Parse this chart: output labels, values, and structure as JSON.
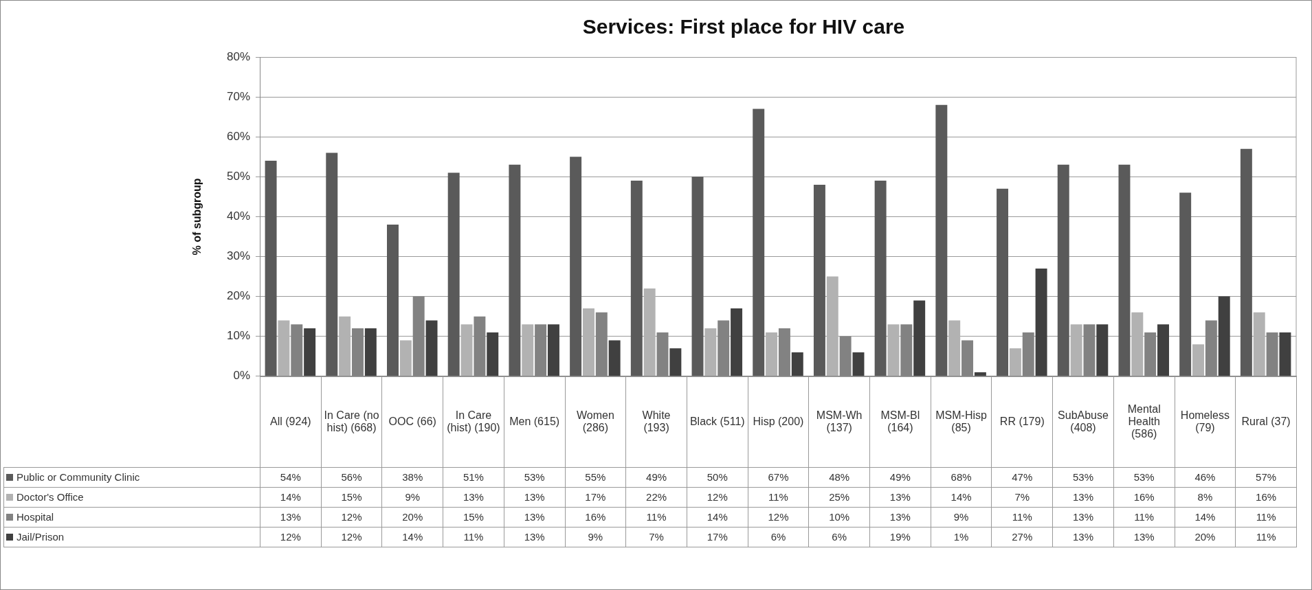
{
  "chart_data": {
    "type": "bar",
    "title": "Services: First place for HIV care",
    "ylabel": "% of subgroup",
    "categories": [
      "All (924)",
      "In Care (no hist) (668)",
      "OOC (66)",
      "In Care (hist) (190)",
      "Men (615)",
      "Women (286)",
      "White (193)",
      "Black (511)",
      "Hisp (200)",
      "MSM-Wh (137)",
      "MSM-Bl (164)",
      "MSM-Hisp (85)",
      "RR (179)",
      "SubAbuse (408)",
      "Mental Health (586)",
      "Homeless (79)",
      "Rural (37)"
    ],
    "series": [
      {
        "name": "Public or Community Clinic",
        "color": "#5a5a5a",
        "values": [
          54,
          56,
          38,
          51,
          53,
          55,
          49,
          50,
          67,
          48,
          49,
          68,
          47,
          53,
          53,
          46,
          57
        ],
        "value_labels": [
          "54%",
          "56%",
          "38%",
          "51%",
          "53%",
          "55%",
          "49%",
          "50%",
          "67%",
          "48%",
          "49%",
          "68%",
          "47%",
          "53%",
          "53%",
          "46%",
          "57%"
        ]
      },
      {
        "name": "Doctor's Office",
        "color": "#b2b2b2",
        "values": [
          14,
          15,
          9,
          13,
          13,
          17,
          22,
          12,
          11,
          25,
          13,
          14,
          7,
          13,
          16,
          8,
          16
        ],
        "value_labels": [
          "14%",
          "15%",
          "9%",
          "13%",
          "13%",
          "17%",
          "22%",
          "12%",
          "11%",
          "25%",
          "13%",
          "14%",
          "7%",
          "13%",
          "16%",
          "8%",
          "16%"
        ]
      },
      {
        "name": "Hospital",
        "color": "#828282",
        "values": [
          13,
          12,
          20,
          15,
          13,
          16,
          11,
          14,
          12,
          10,
          13,
          9,
          11,
          13,
          11,
          14,
          11
        ],
        "value_labels": [
          "13%",
          "12%",
          "20%",
          "15%",
          "13%",
          "16%",
          "11%",
          "14%",
          "12%",
          "10%",
          "13%",
          "9%",
          "11%",
          "13%",
          "11%",
          "14%",
          "11%"
        ]
      },
      {
        "name": "Jail/Prison",
        "color": "#404040",
        "values": [
          12,
          12,
          14,
          11,
          13,
          9,
          7,
          17,
          6,
          6,
          19,
          1,
          27,
          13,
          13,
          20,
          11
        ],
        "value_labels": [
          "12%",
          "12%",
          "14%",
          "11%",
          "13%",
          "9%",
          "7%",
          "17%",
          "6%",
          "6%",
          "19%",
          "1%",
          "27%",
          "13%",
          "13%",
          "20%",
          "11%"
        ]
      }
    ],
    "ylim": [
      0,
      80
    ],
    "yticks": [
      {
        "value": 0,
        "label": "0%"
      },
      {
        "value": 10,
        "label": "10%"
      },
      {
        "value": 20,
        "label": "20%"
      },
      {
        "value": 30,
        "label": "30%"
      },
      {
        "value": 40,
        "label": "40%"
      },
      {
        "value": 50,
        "label": "50%"
      },
      {
        "value": 60,
        "label": "60%"
      },
      {
        "value": 70,
        "label": "70%"
      },
      {
        "value": 80,
        "label": "80%"
      }
    ],
    "grid": "y",
    "legend": "bottom"
  }
}
